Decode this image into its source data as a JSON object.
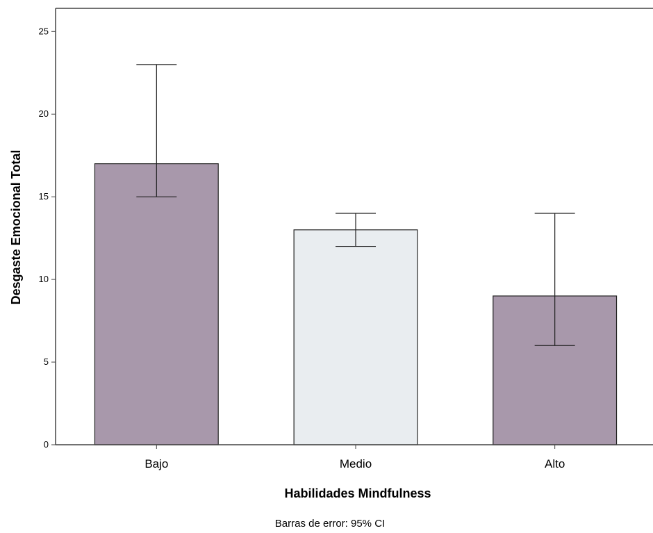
{
  "chart_data": {
    "type": "bar",
    "categories": [
      "Bajo",
      "Medio",
      "Alto"
    ],
    "values": [
      17,
      13,
      9
    ],
    "error_bars": {
      "lower": [
        15,
        12,
        6
      ],
      "upper": [
        23,
        14,
        14
      ]
    },
    "bar_colors": [
      "#a898ab",
      "#e9edf0",
      "#a898ab"
    ],
    "xlabel": "Habilidades Mindfulness",
    "ylabel": "Desgaste Emocional Total",
    "yticks": [
      0,
      5,
      10,
      15,
      20,
      25
    ],
    "ylim": [
      0,
      26.4
    ],
    "footnote": "Barras de error: 95% CI",
    "grid": false
  }
}
